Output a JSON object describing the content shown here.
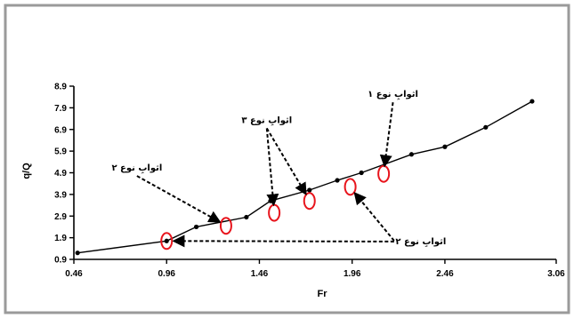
{
  "colors": {
    "frame": "#9a9a9a",
    "axis": "#000000",
    "series": "#000000",
    "highlight": "#e8141c"
  },
  "chart_data": {
    "type": "line",
    "xlabel": "Fr",
    "ylabel": "q/Q",
    "xlim": [
      0.46,
      3.06
    ],
    "ylim": [
      0.9,
      8.9
    ],
    "xticks": [
      0.46,
      0.96,
      1.46,
      1.96,
      2.46,
      3.06
    ],
    "xtick_labels": [
      "0.46",
      "0.96",
      "1.46",
      "1.96",
      "2.46",
      "3.06"
    ],
    "yticks": [
      0.9,
      1.9,
      2.9,
      3.9,
      4.9,
      5.9,
      6.9,
      7.9,
      8.9
    ],
    "ytick_labels": [
      "0.9",
      "1.9",
      "2.9",
      "3.9",
      "4.9",
      "5.9",
      "6.9",
      "7.9",
      "8.9"
    ],
    "grid": false,
    "legend": "none",
    "series": [
      {
        "marker": "circle",
        "x": [
          0.48,
          0.96,
          1.12,
          1.39,
          1.52,
          1.73,
          1.88,
          2.01,
          2.28,
          2.46,
          2.68,
          2.93
        ],
        "y": [
          1.2,
          1.75,
          2.4,
          2.85,
          3.6,
          4.1,
          4.55,
          4.9,
          5.75,
          6.1,
          7.0,
          8.2
        ]
      }
    ],
    "highlights": [
      {
        "x": 0.96,
        "y": 1.75
      },
      {
        "x": 1.28,
        "y": 2.45
      },
      {
        "x": 1.54,
        "y": 3.05
      },
      {
        "x": 1.73,
        "y": 3.6
      },
      {
        "x": 1.95,
        "y": 4.25
      },
      {
        "x": 2.13,
        "y": 4.85
      }
    ],
    "annotations": [
      {
        "label": "اثوابِ نوع ١",
        "x": 2.18,
        "y": 8.4,
        "targets": [
          5
        ]
      },
      {
        "label": "اثوابِ نوع ٣",
        "x": 1.5,
        "y": 7.2,
        "targets": [
          2,
          3
        ]
      },
      {
        "label": "اثوابِ نوع ٢",
        "x": 0.8,
        "y": 5.0,
        "targets": [
          1
        ]
      },
      {
        "label": "اثوابِ نوع ٢",
        "x": 2.33,
        "y": 1.6,
        "targets": [
          0,
          4
        ]
      }
    ]
  }
}
